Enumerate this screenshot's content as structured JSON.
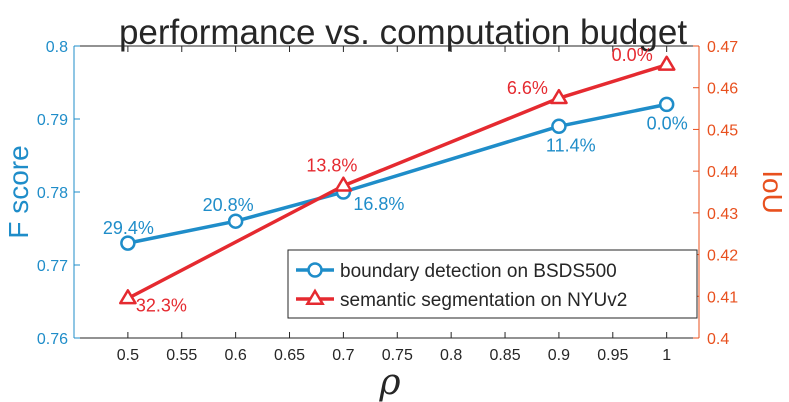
{
  "chart_data": {
    "type": "line",
    "title": "performance vs. computation budget",
    "xlabel": "ρ",
    "ylabel_left": "F score",
    "ylabel_right": "IoU",
    "xlim": [
      0.45,
      1.03
    ],
    "ylim_left": [
      0.76,
      0.8
    ],
    "ylim_right": [
      0.4,
      0.47
    ],
    "x_ticks": [
      "0.5",
      "0.55",
      "0.6",
      "0.65",
      "0.7",
      "0.75",
      "0.8",
      "0.85",
      "0.9",
      "0.95",
      "1"
    ],
    "y_left_ticks": [
      "0.76",
      "0.77",
      "0.78",
      "0.79",
      "0.8"
    ],
    "y_right_ticks": [
      "0.4",
      "0.41",
      "0.42",
      "0.43",
      "0.44",
      "0.45",
      "0.46",
      "0.47"
    ],
    "grid": false,
    "legend_position": "bottom-right",
    "colors": {
      "left_axis": "#1f8dc9",
      "right_axis": "#e8501e",
      "series1": "#1f8dc9",
      "series2": "#e52a30",
      "text": "#262626"
    },
    "series": [
      {
        "name": "boundary detection on BSDS500",
        "axis": "left",
        "marker": "circle",
        "x": [
          0.5,
          0.6,
          0.7,
          0.9,
          1.0
        ],
        "y": [
          0.773,
          0.776,
          0.78,
          0.789,
          0.792
        ],
        "labels": [
          "29.4%",
          "20.8%",
          "16.8%",
          "11.4%",
          "0.0%"
        ]
      },
      {
        "name": "semantic segmentation on NYUv2",
        "axis": "right",
        "marker": "triangle",
        "x": [
          0.5,
          0.7,
          0.9,
          1.0
        ],
        "y": [
          0.4095,
          0.4365,
          0.4575,
          0.4655
        ],
        "labels": [
          "32.3%",
          "13.8%",
          "6.6%",
          "0.0%"
        ]
      }
    ]
  }
}
